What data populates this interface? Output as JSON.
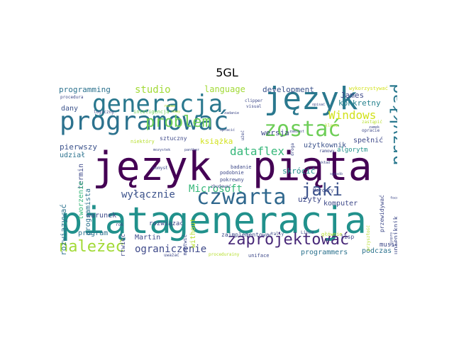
{
  "title": "5GL",
  "cloud": {
    "words": [
      {
        "t": "język",
        "c": "#440154"
      },
      {
        "t": "piąta",
        "c": "#440154"
      },
      {
        "t": "piąta",
        "c": "#21918c"
      },
      {
        "t": "generacja",
        "c": "#21918c"
      },
      {
        "t": "język",
        "c": "#2a788e"
      },
      {
        "t": "programować",
        "c": "#2c728e"
      },
      {
        "t": "generacja",
        "c": "#2a788e"
      },
      {
        "t": "zostać",
        "c": "#6ece58"
      },
      {
        "t": "czwarta",
        "c": "#30688e"
      },
      {
        "t": "problem",
        "c": "#6ece58"
      },
      {
        "t": "jaki",
        "c": "#3b528b"
      },
      {
        "t": "należeć",
        "c": "#a2da37"
      },
      {
        "t": "zaprojektować",
        "c": "#482878"
      },
      {
        "t": "przykład",
        "c": "#2a788e"
      },
      {
        "t": "studio",
        "c": "#a2da37"
      },
      {
        "t": "Windows",
        "c": "#d2e21b"
      },
      {
        "t": "dataflex",
        "c": "#35b779"
      },
      {
        "t": "wyłącznie",
        "c": "#3b528b"
      },
      {
        "t": "Microsoft",
        "c": "#35b779"
      },
      {
        "t": "ograniczenie",
        "c": "#3e4989"
      },
      {
        "t": "programming",
        "c": "#2c728e"
      },
      {
        "t": "language",
        "c": "#a2da37"
      },
      {
        "t": "development",
        "c": "#3b528b"
      },
      {
        "t": "James",
        "c": "#3e4989"
      },
      {
        "t": "konkretny",
        "c": "#26828e"
      },
      {
        "t": "dany",
        "c": "#3b528b"
      },
      {
        "t": "książka",
        "c": "#d2e21b"
      },
      {
        "t": "wersja",
        "c": "#3e4989"
      },
      {
        "t": "użytkownik",
        "c": "#3b528b"
      },
      {
        "t": "spełnić",
        "c": "#3e4989"
      },
      {
        "t": "pierwszy",
        "c": "#3b528b"
      },
      {
        "t": "skrócić",
        "c": "#21918c"
      },
      {
        "t": "użyty",
        "c": "#3e4989"
      },
      {
        "t": "komputer",
        "c": "#3e4989"
      },
      {
        "t": "Martin",
        "c": "#3e4989"
      },
      {
        "t": "program",
        "c": "#2c728e"
      },
      {
        "t": "programmers",
        "c": "#2c728e"
      },
      {
        "t": "podczas",
        "c": "#2c728e"
      },
      {
        "t": "termin",
        "c": "#3e4989"
      },
      {
        "t": "warunek",
        "c": "#3e4989"
      },
      {
        "t": "udział",
        "c": "#2c728e"
      },
      {
        "t": "tworzenie",
        "c": "#35b779"
      },
      {
        "t": "programista",
        "c": "#2c728e"
      },
      {
        "t": "rozwiązywać",
        "c": "#2c728e"
      },
      {
        "t": "applications",
        "c": "#26828e"
      },
      {
        "t": "rozwiązać",
        "c": "#3e4989"
      },
      {
        "t": "without",
        "c": "#b5de2b"
      },
      {
        "t": "musieć",
        "c": "#3e4989"
      },
      {
        "t": "algorytm",
        "c": "#21918c"
      },
      {
        "t": "sztuczny",
        "c": "#3e4989"
      },
      {
        "t": "niektóry",
        "c": "#b5de2b"
      },
      {
        "t": "wykorzystywać",
        "c": "#d2e21b"
      },
      {
        "t": "logiczny",
        "c": "#3e4989"
      },
      {
        "t": "inteligencja",
        "c": "#6ece58"
      },
      {
        "t": "procedura",
        "c": "#3e4989"
      },
      {
        "t": "clipper",
        "c": "#3e4989"
      },
      {
        "t": "visual",
        "c": "#3e4989"
      },
      {
        "t": "zadanie",
        "c": "#3e4989"
      },
      {
        "t": "zastąpić",
        "c": "#b5de2b"
      },
      {
        "t": "klone",
        "c": "#b5de2b"
      },
      {
        "t": "opracie",
        "c": "#3e4989"
      },
      {
        "t": "ramowy",
        "c": "#3e4989"
      },
      {
        "t": "badanie",
        "c": "#3e4989"
      },
      {
        "t": "podobnie",
        "c": "#3e4989"
      },
      {
        "t": "pokrewny",
        "c": "#3e4989"
      },
      {
        "t": "zbudować",
        "c": "#3e4989"
      },
      {
        "t": "pomysł",
        "c": "#3e4989"
      },
      {
        "t": "mozystek",
        "c": "#3e4989"
      },
      {
        "t": "panther",
        "c": "#3e4989"
      },
      {
        "t": "rok",
        "c": "#3e4989"
      },
      {
        "t": "zaimplementować",
        "c": "#3e4989"
      },
      {
        "t": "Mercury",
        "c": "#3e4989"
      },
      {
        "t": "lisp",
        "c": "#3e4989"
      },
      {
        "t": "Linca",
        "c": "#3e4989"
      },
      {
        "t": "głównie",
        "c": "#b5de2b"
      },
      {
        "t": "rally",
        "c": "#3e4989"
      },
      {
        "t": "uniface",
        "c": "#3e4989"
      },
      {
        "t": "uważać",
        "c": "#3e4989"
      },
      {
        "t": "procedurainy",
        "c": "#b5de2b"
      },
      {
        "t": "martwieć",
        "c": "#3e4989"
      },
      {
        "t": "przewidywać",
        "c": "#3e4989"
      },
      {
        "t": "przyszłość",
        "c": "#b5de2b"
      },
      {
        "t": "martwić",
        "c": "#3e4989"
      },
      {
        "t": "upleniknik",
        "c": "#3e4989"
      },
      {
        "t": "droga",
        "c": "#3e4989"
      },
      {
        "t": "użeć",
        "c": "#3e4989"
      },
      {
        "t": "opracić",
        "c": "#3e4989"
      },
      {
        "t": "nowy",
        "c": "#b5de2b"
      },
      {
        "t": "zamiast",
        "c": "#3e4989"
      },
      {
        "t": "opisać",
        "c": "#3e4989"
      },
      {
        "t": "nazwa",
        "c": "#b5de2b"
      },
      {
        "t": "zamek",
        "c": "#3e4989"
      },
      {
        "t": "skład",
        "c": "#3e4989"
      },
      {
        "t": "sposób",
        "c": "#3e4989"
      },
      {
        "t": "focus",
        "c": "#3e4989"
      },
      {
        "t": "biopro",
        "c": "#3e4989"
      }
    ]
  }
}
